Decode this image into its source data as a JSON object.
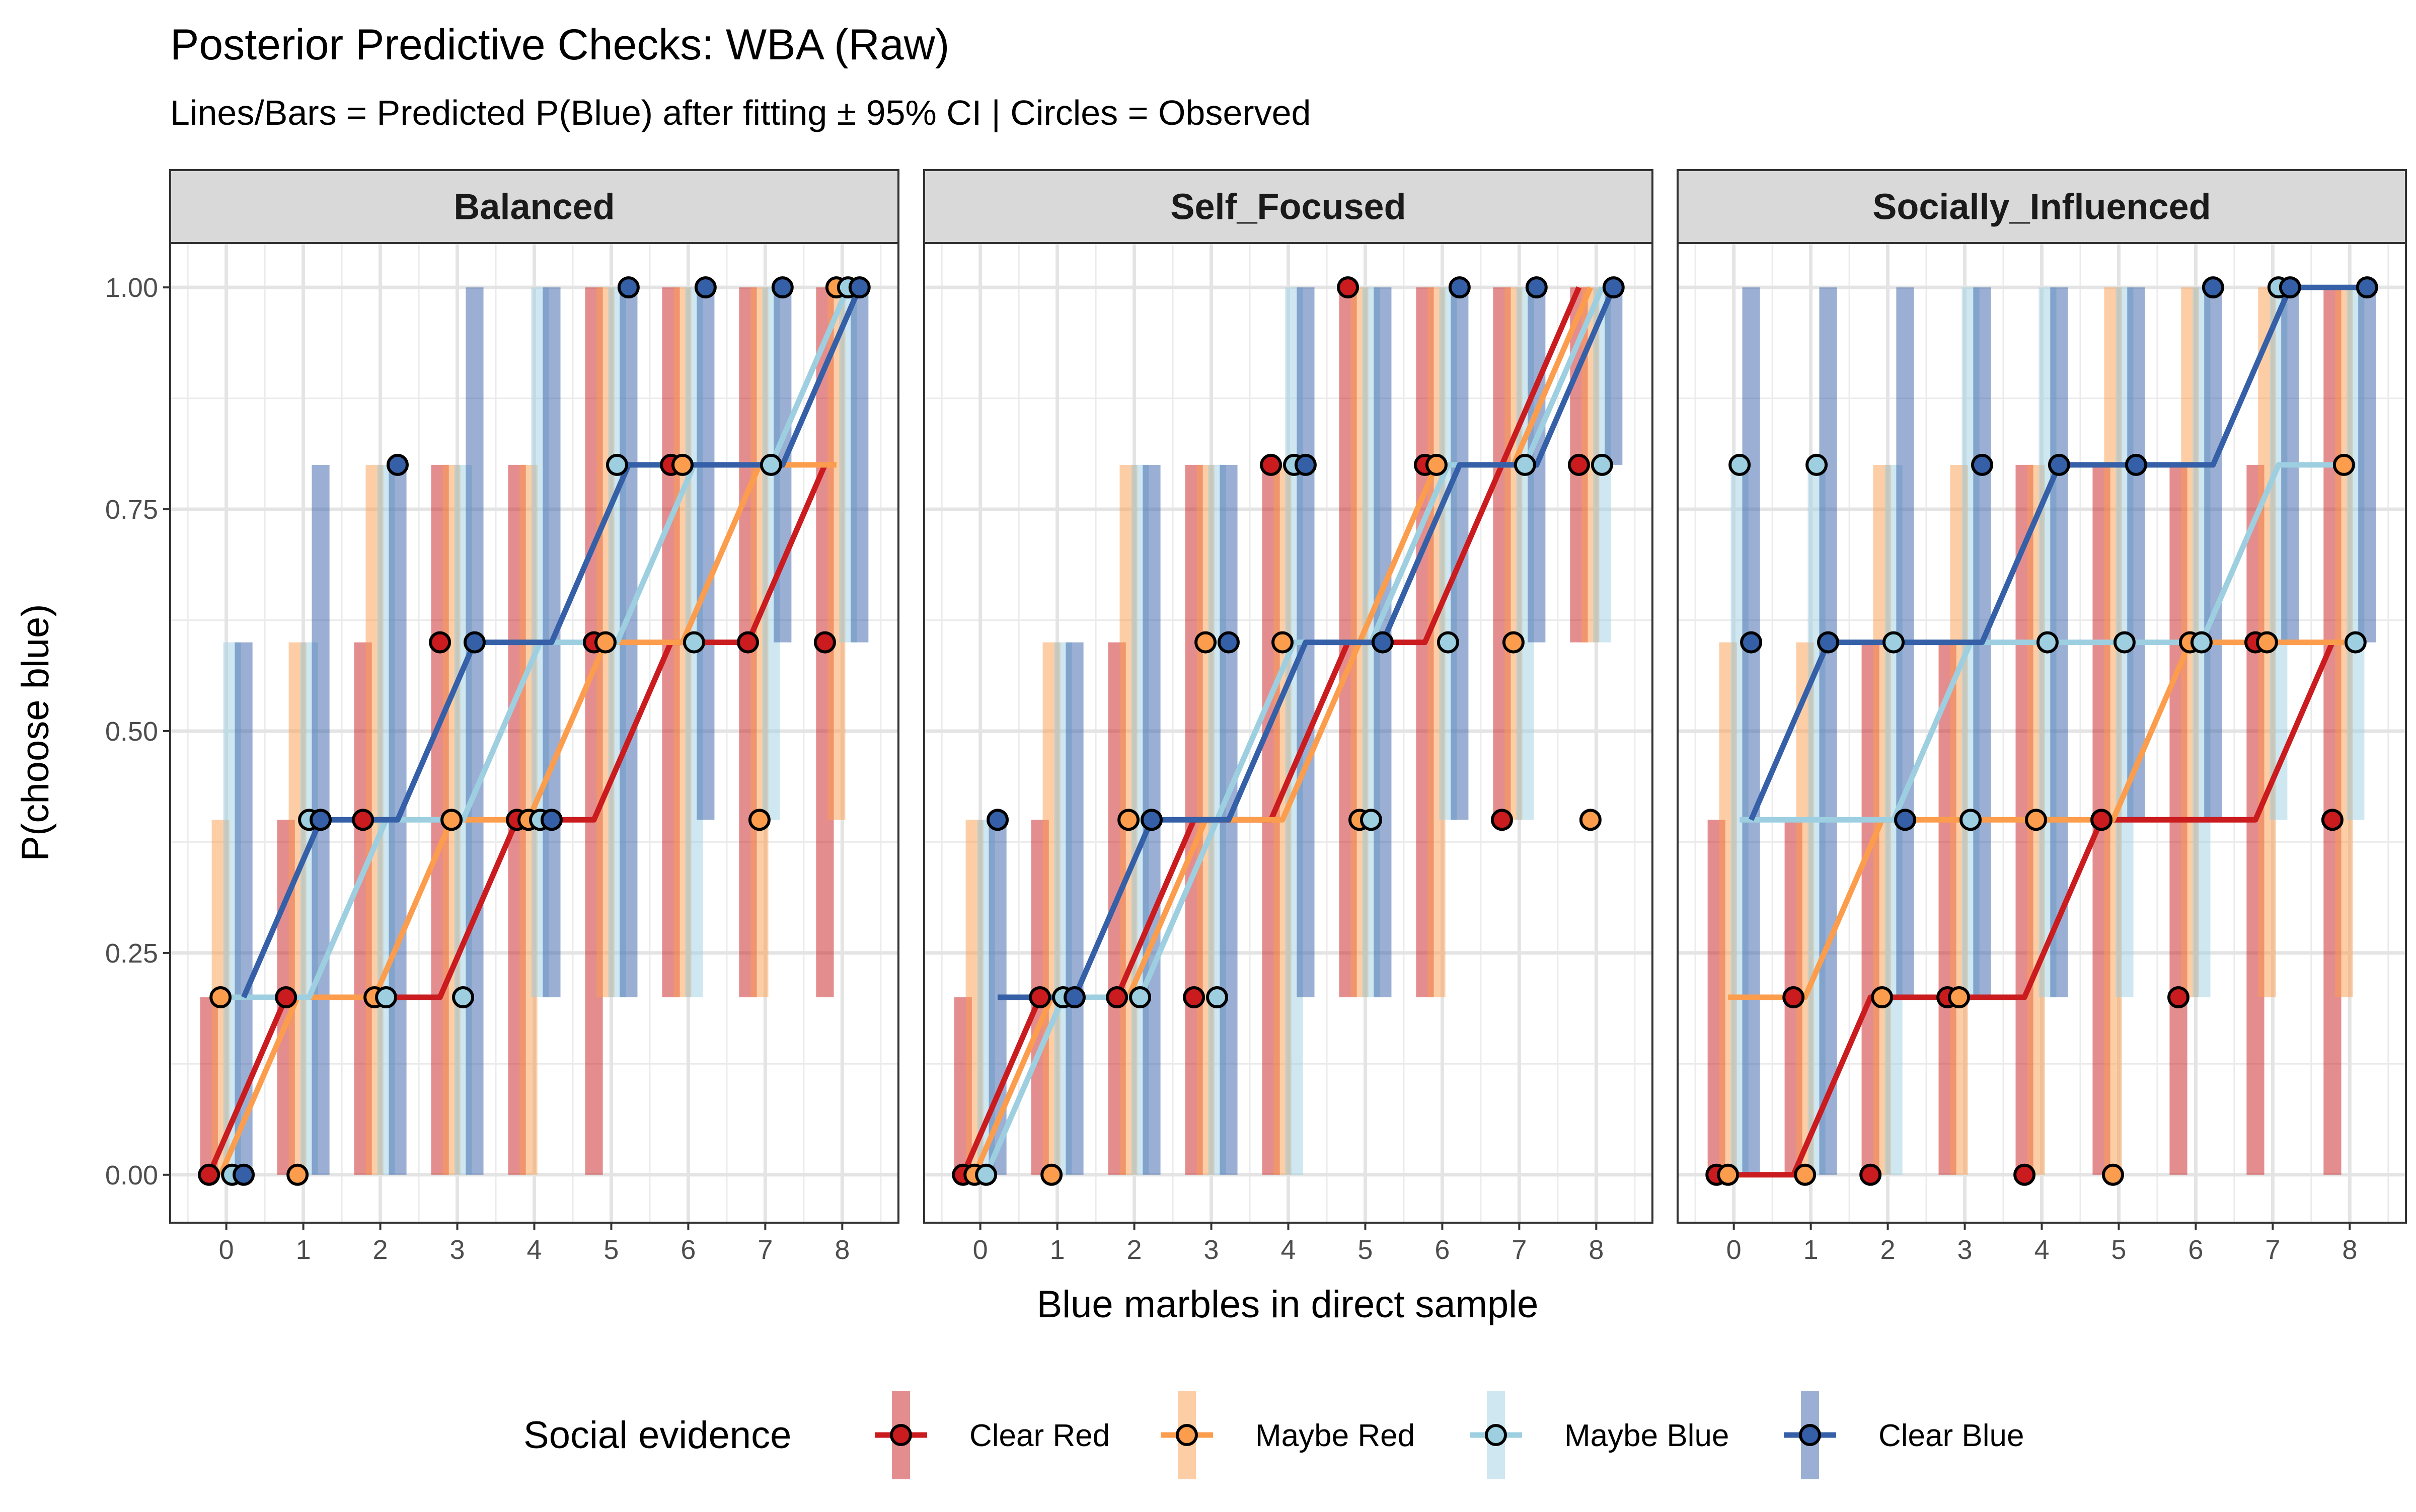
{
  "chart_data": {
    "type": "line",
    "title": "Posterior Predictive Checks: WBA (Raw)",
    "subtitle": "Lines/Bars = Predicted P(Blue) after fitting ± 95% CI | Circles = Observed",
    "xlabel": "Blue marbles in direct sample",
    "ylabel": "P(choose blue)",
    "x": [
      0,
      1,
      2,
      3,
      4,
      5,
      6,
      7,
      8
    ],
    "x_tick_labels": [
      "0",
      "1",
      "2",
      "3",
      "4",
      "5",
      "6",
      "7",
      "8"
    ],
    "y_ticks": [
      0,
      0.25,
      0.5,
      0.75,
      1
    ],
    "y_tick_labels": [
      "0.00",
      "0.25",
      "0.50",
      "0.75",
      "1.00"
    ],
    "ylim": [
      0,
      1
    ],
    "grid": true,
    "legend": {
      "title": "Social evidence",
      "position": "bottom",
      "entries": [
        "Clear Red",
        "Maybe Red",
        "Maybe Blue",
        "Clear Blue"
      ]
    },
    "colors": {
      "Clear Red": "#CA1B1F",
      "Maybe Red": "#FC9D4D",
      "Maybe Blue": "#9DCFE1",
      "Clear Blue": "#3560A7"
    },
    "facets": [
      {
        "panel": "Balanced",
        "series": [
          {
            "name": "Clear Red",
            "predicted": [
              0,
              0.2,
              0.2,
              0.2,
              0.4,
              0.4,
              0.6,
              0.6,
              0.8
            ],
            "ci_lower": [
              0,
              0,
              0,
              0,
              0,
              0,
              0.2,
              0.2,
              0.2
            ],
            "ci_upper": [
              0.2,
              0.4,
              0.6,
              0.8,
              0.8,
              1,
              1,
              1,
              1
            ],
            "observed": [
              0,
              0.2,
              0.4,
              0.6,
              0.4,
              0.6,
              0.8,
              0.6,
              0.6
            ]
          },
          {
            "name": "Maybe Red",
            "predicted": [
              0,
              0.2,
              0.2,
              0.4,
              0.4,
              0.6,
              0.6,
              0.8,
              0.8
            ],
            "ci_lower": [
              0,
              0,
              0,
              0,
              0,
              0.2,
              0.2,
              0.2,
              0.4
            ],
            "ci_upper": [
              0.4,
              0.6,
              0.8,
              0.8,
              0.8,
              1,
              1,
              1,
              1
            ],
            "observed": [
              0.2,
              0,
              0.2,
              0.4,
              0.4,
              0.6,
              0.8,
              0.4,
              1
            ]
          },
          {
            "name": "Maybe Blue",
            "predicted": [
              0.2,
              0.2,
              0.4,
              0.4,
              0.6,
              0.6,
              0.8,
              0.8,
              1
            ],
            "ci_lower": [
              0,
              0,
              0,
              0,
              0.2,
              0.2,
              0.2,
              0.4,
              0.6
            ],
            "ci_upper": [
              0.6,
              0.6,
              0.8,
              0.8,
              1,
              1,
              1,
              1,
              1
            ],
            "observed": [
              0,
              0.4,
              0.2,
              0.2,
              0.4,
              0.8,
              0.6,
              0.8,
              1
            ]
          },
          {
            "name": "Clear Blue",
            "predicted": [
              0.2,
              0.4,
              0.4,
              0.6,
              0.6,
              0.8,
              0.8,
              0.8,
              1
            ],
            "ci_lower": [
              0,
              0,
              0,
              0,
              0.2,
              0.2,
              0.4,
              0.6,
              0.6
            ],
            "ci_upper": [
              0.6,
              0.8,
              0.8,
              1,
              1,
              1,
              1,
              1,
              1
            ],
            "observed": [
              0,
              0.4,
              0.8,
              0.6,
              0.4,
              1,
              1,
              1,
              1
            ]
          }
        ]
      },
      {
        "panel": "Self_Focused",
        "series": [
          {
            "name": "Clear Red",
            "predicted": [
              0,
              0.2,
              0.2,
              0.4,
              0.4,
              0.6,
              0.6,
              0.8,
              1
            ],
            "ci_lower": [
              0,
              0,
              0,
              0,
              0,
              0.2,
              0.2,
              0.4,
              0.6
            ],
            "ci_upper": [
              0.2,
              0.4,
              0.6,
              0.8,
              0.8,
              1,
              1,
              1,
              1
            ],
            "observed": [
              0,
              0.2,
              0.2,
              0.2,
              0.8,
              1,
              0.8,
              0.4,
              0.8
            ]
          },
          {
            "name": "Maybe Red",
            "predicted": [
              0,
              0.2,
              0.2,
              0.4,
              0.4,
              0.6,
              0.8,
              0.8,
              1
            ],
            "ci_lower": [
              0,
              0,
              0,
              0,
              0,
              0.2,
              0.2,
              0.4,
              0.6
            ],
            "ci_upper": [
              0.4,
              0.6,
              0.8,
              0.8,
              0.8,
              1,
              1,
              1,
              1
            ],
            "observed": [
              0,
              0,
              0.4,
              0.6,
              0.6,
              0.4,
              0.8,
              0.6,
              0.4
            ]
          },
          {
            "name": "Maybe Blue",
            "predicted": [
              0,
              0.2,
              0.2,
              0.4,
              0.6,
              0.6,
              0.8,
              0.8,
              1
            ],
            "ci_lower": [
              0,
              0,
              0,
              0,
              0,
              0.2,
              0.4,
              0.4,
              0.6
            ],
            "ci_upper": [
              0.4,
              0.6,
              0.8,
              0.8,
              1,
              1,
              1,
              1,
              1
            ],
            "observed": [
              0,
              0.2,
              0.2,
              0.2,
              0.8,
              0.4,
              0.6,
              0.8,
              0.8
            ]
          },
          {
            "name": "Clear Blue",
            "predicted": [
              0.2,
              0.2,
              0.4,
              0.4,
              0.6,
              0.6,
              0.8,
              0.8,
              1
            ],
            "ci_lower": [
              0,
              0,
              0,
              0,
              0.2,
              0.2,
              0.4,
              0.6,
              0.8
            ],
            "ci_upper": [
              0.4,
              0.6,
              0.8,
              0.8,
              1,
              1,
              1,
              1,
              1
            ],
            "observed": [
              0.4,
              0.2,
              0.4,
              0.6,
              0.8,
              0.6,
              1,
              1,
              1
            ]
          }
        ]
      },
      {
        "panel": "Socially_Influenced",
        "series": [
          {
            "name": "Clear Red",
            "predicted": [
              0,
              0,
              0.2,
              0.2,
              0.2,
              0.4,
              0.4,
              0.4,
              0.6
            ],
            "ci_lower": [
              0,
              0,
              0,
              0,
              0,
              0,
              0,
              0,
              0
            ],
            "ci_upper": [
              0.4,
              0.4,
              0.6,
              0.6,
              0.8,
              0.8,
              0.8,
              0.8,
              1
            ],
            "observed": [
              0,
              0.2,
              0,
              0.2,
              0,
              0.4,
              0.2,
              0.6,
              0.4
            ]
          },
          {
            "name": "Maybe Red",
            "predicted": [
              0.2,
              0.2,
              0.4,
              0.4,
              0.4,
              0.4,
              0.6,
              0.6,
              0.6
            ],
            "ci_lower": [
              0,
              0,
              0,
              0,
              0,
              0,
              0.2,
              0.2,
              0.2
            ],
            "ci_upper": [
              0.6,
              0.6,
              0.8,
              0.8,
              0.8,
              1,
              1,
              1,
              1
            ],
            "observed": [
              0,
              0,
              0.2,
              0.2,
              0.4,
              0,
              0.6,
              0.6,
              0.8
            ]
          },
          {
            "name": "Maybe Blue",
            "predicted": [
              0.4,
              0.4,
              0.4,
              0.6,
              0.6,
              0.6,
              0.6,
              0.8,
              0.8
            ],
            "ci_lower": [
              0,
              0,
              0,
              0.2,
              0.2,
              0.2,
              0.2,
              0.4,
              0.4
            ],
            "ci_upper": [
              0.8,
              0.8,
              0.8,
              1,
              1,
              1,
              1,
              1,
              1
            ],
            "observed": [
              0.8,
              0.8,
              0.6,
              0.4,
              0.6,
              0.6,
              0.6,
              1,
              0.6
            ]
          },
          {
            "name": "Clear Blue",
            "predicted": [
              0.4,
              0.6,
              0.6,
              0.6,
              0.8,
              0.8,
              0.8,
              1,
              1
            ],
            "ci_lower": [
              0,
              0,
              0.2,
              0.2,
              0.2,
              0.4,
              0.4,
              0.6,
              0.6
            ],
            "ci_upper": [
              1,
              1,
              1,
              1,
              1,
              1,
              1,
              1,
              1
            ],
            "observed": [
              0.6,
              0.6,
              0.4,
              0.8,
              0.8,
              0.8,
              1,
              1,
              1
            ]
          }
        ]
      }
    ]
  }
}
